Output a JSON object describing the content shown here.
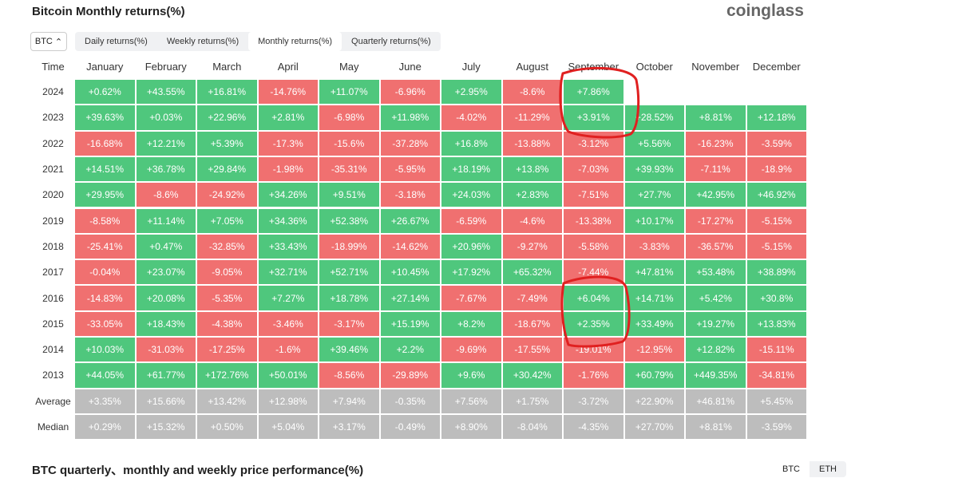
{
  "header": {
    "title": "Bitcoin Monthly returns(%)",
    "logo": "coinglass"
  },
  "controls": {
    "asset": "BTC",
    "tabs": [
      "Daily returns(%)",
      "Weekly returns(%)",
      "Monthly returns(%)",
      "Quarterly returns(%)"
    ],
    "active_tab": 2
  },
  "table": {
    "columns": [
      "Time",
      "January",
      "February",
      "March",
      "April",
      "May",
      "June",
      "July",
      "August",
      "September",
      "October",
      "November",
      "December"
    ],
    "rows": [
      [
        "2024",
        "+0.62%",
        "+43.55%",
        "+16.81%",
        "-14.76%",
        "+11.07%",
        "-6.96%",
        "+2.95%",
        "-8.6%",
        "+7.86%"
      ],
      [
        "2023",
        "+39.63%",
        "+0.03%",
        "+22.96%",
        "+2.81%",
        "-6.98%",
        "+11.98%",
        "-4.02%",
        "-11.29%",
        "+3.91%",
        "+28.52%",
        "+8.81%",
        "+12.18%"
      ],
      [
        "2022",
        "-16.68%",
        "+12.21%",
        "+5.39%",
        "-17.3%",
        "-15.6%",
        "-37.28%",
        "+16.8%",
        "-13.88%",
        "-3.12%",
        "+5.56%",
        "-16.23%",
        "-3.59%"
      ],
      [
        "2021",
        "+14.51%",
        "+36.78%",
        "+29.84%",
        "-1.98%",
        "-35.31%",
        "-5.95%",
        "+18.19%",
        "+13.8%",
        "-7.03%",
        "+39.93%",
        "-7.11%",
        "-18.9%"
      ],
      [
        "2020",
        "+29.95%",
        "-8.6%",
        "-24.92%",
        "+34.26%",
        "+9.51%",
        "-3.18%",
        "+24.03%",
        "+2.83%",
        "-7.51%",
        "+27.7%",
        "+42.95%",
        "+46.92%"
      ],
      [
        "2019",
        "-8.58%",
        "+11.14%",
        "+7.05%",
        "+34.36%",
        "+52.38%",
        "+26.67%",
        "-6.59%",
        "-4.6%",
        "-13.38%",
        "+10.17%",
        "-17.27%",
        "-5.15%"
      ],
      [
        "2018",
        "-25.41%",
        "+0.47%",
        "-32.85%",
        "+33.43%",
        "-18.99%",
        "-14.62%",
        "+20.96%",
        "-9.27%",
        "-5.58%",
        "-3.83%",
        "-36.57%",
        "-5.15%"
      ],
      [
        "2017",
        "-0.04%",
        "+23.07%",
        "-9.05%",
        "+32.71%",
        "+52.71%",
        "+10.45%",
        "+17.92%",
        "+65.32%",
        "-7.44%",
        "+47.81%",
        "+53.48%",
        "+38.89%"
      ],
      [
        "2016",
        "-14.83%",
        "+20.08%",
        "-5.35%",
        "+7.27%",
        "+18.78%",
        "+27.14%",
        "-7.67%",
        "-7.49%",
        "+6.04%",
        "+14.71%",
        "+5.42%",
        "+30.8%"
      ],
      [
        "2015",
        "-33.05%",
        "+18.43%",
        "-4.38%",
        "-3.46%",
        "-3.17%",
        "+15.19%",
        "+8.2%",
        "-18.67%",
        "+2.35%",
        "+33.49%",
        "+19.27%",
        "+13.83%"
      ],
      [
        "2014",
        "+10.03%",
        "-31.03%",
        "-17.25%",
        "-1.6%",
        "+39.46%",
        "+2.2%",
        "-9.69%",
        "-17.55%",
        "-19.01%",
        "-12.95%",
        "+12.82%",
        "-15.11%"
      ],
      [
        "2013",
        "+44.05%",
        "+61.77%",
        "+172.76%",
        "+50.01%",
        "-8.56%",
        "-29.89%",
        "+9.6%",
        "+30.42%",
        "-1.76%",
        "+60.79%",
        "+449.35%",
        "-34.81%"
      ],
      [
        "Average",
        "+3.35%",
        "+15.66%",
        "+13.42%",
        "+12.98%",
        "+7.94%",
        "-0.35%",
        "+7.56%",
        "+1.75%",
        "-3.72%",
        "+22.90%",
        "+46.81%",
        "+5.45%"
      ],
      [
        "Median",
        "+0.29%",
        "+15.32%",
        "+0.50%",
        "+5.04%",
        "+3.17%",
        "-0.49%",
        "+8.90%",
        "-8.04%",
        "-4.35%",
        "+27.70%",
        "+8.81%",
        "-3.59%"
      ]
    ],
    "summary_rows": [
      12,
      13
    ]
  },
  "footer": {
    "title": "BTC quarterly、monthly and weekly price performance(%)",
    "toggle": [
      "BTC",
      "ETH"
    ]
  }
}
